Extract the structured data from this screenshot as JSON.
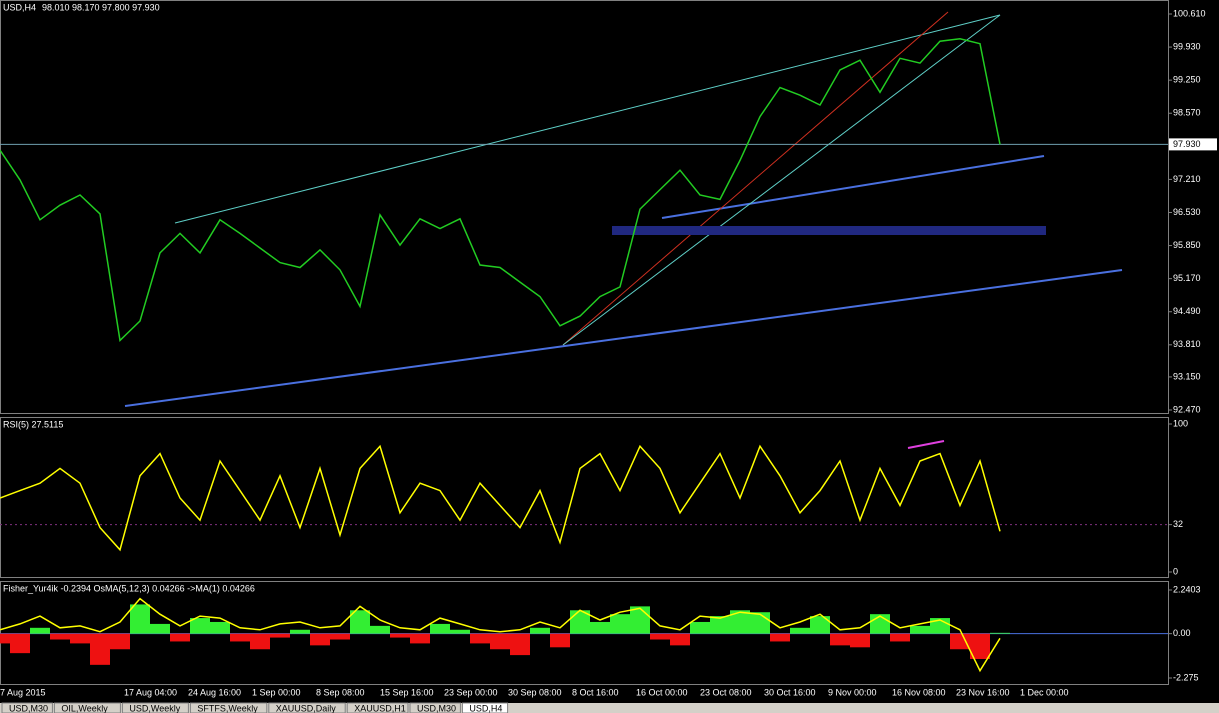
{
  "header": {
    "symbol": "USD,H4",
    "quote": "98.010 98.170 97.800 97.930"
  },
  "price": {
    "ylim": [
      92.47,
      100.61
    ],
    "yticks": [
      {
        "value": 100.61,
        "label": "100.610"
      },
      {
        "value": 99.93,
        "label": "99.930"
      },
      {
        "value": 99.25,
        "label": "99.250"
      },
      {
        "value": 98.57,
        "label": "98.570"
      },
      {
        "value": 97.21,
        "label": "97.210"
      },
      {
        "value": 96.53,
        "label": "96.530"
      },
      {
        "value": 95.85,
        "label": "95.850"
      },
      {
        "value": 95.17,
        "label": "95.170"
      },
      {
        "value": 94.49,
        "label": "94.490"
      },
      {
        "value": 93.81,
        "label": "93.810"
      },
      {
        "value": 93.15,
        "label": "93.150"
      },
      {
        "value": 92.47,
        "label": "92.470"
      }
    ],
    "current": {
      "value": 97.93,
      "label": "97.930"
    },
    "values": [
      97.81,
      97.2,
      96.38,
      96.68,
      96.89,
      96.5,
      93.9,
      94.3,
      95.7,
      96.1,
      95.7,
      96.38,
      96.1,
      95.8,
      95.5,
      95.4,
      95.76,
      95.35,
      94.6,
      96.48,
      95.86,
      96.4,
      96.2,
      96.4,
      95.45,
      95.4,
      95.1,
      94.8,
      94.2,
      94.4,
      94.8,
      95.0,
      96.6,
      97.0,
      97.4,
      96.89,
      96.8,
      97.6,
      98.5,
      99.1,
      98.94,
      98.74,
      99.46,
      99.66,
      99.0,
      99.7,
      99.6,
      100.05,
      100.1,
      100.0,
      97.93
    ]
  },
  "rsi": {
    "label": "RSI(5) 27.5115",
    "ylim": [
      0,
      100
    ],
    "yticks": [
      100,
      32,
      0
    ],
    "values": [
      50,
      55,
      60,
      70,
      60,
      30,
      15,
      65,
      80,
      50,
      35,
      75,
      55,
      35,
      65,
      30,
      70,
      25,
      70,
      85,
      40,
      60,
      55,
      35,
      60,
      45,
      30,
      55,
      20,
      70,
      80,
      55,
      85,
      70,
      40,
      60,
      80,
      50,
      85,
      65,
      40,
      55,
      75,
      35,
      70,
      45,
      75,
      80,
      45,
      75,
      27.5115
    ]
  },
  "fisher": {
    "label": "Fisher_Yur4ik -0.2394  OsMA(5,12,3) 0.04266  ->MA(1) 0.04266",
    "ylim": [
      -2.275,
      2.2403
    ],
    "yticks": [
      2.2403,
      {
        "value": 0,
        "label": "0.00"
      },
      -2.275
    ],
    "osma": [
      -0.5,
      -1.0,
      0.3,
      -0.3,
      -0.5,
      -1.6,
      -0.8,
      1.5,
      0.5,
      -0.4,
      0.8,
      0.6,
      -0.4,
      -0.8,
      -0.2,
      0.2,
      -0.6,
      -0.3,
      1.2,
      0.4,
      -0.2,
      -0.5,
      0.5,
      0.2,
      -0.5,
      -0.8,
      -1.1,
      0.3,
      -0.7,
      1.2,
      0.6,
      1.0,
      1.4,
      -0.3,
      -0.6,
      0.6,
      0.9,
      1.2,
      1.1,
      -0.4,
      0.3,
      0.9,
      -0.6,
      -0.7,
      1.0,
      -0.4,
      0.4,
      0.8,
      -0.8,
      -1.3,
      0.04266
    ],
    "line": [
      0.2,
      0.5,
      0.9,
      0.3,
      0.4,
      0.1,
      0.6,
      1.8,
      1.0,
      0.4,
      0.9,
      0.8,
      0.3,
      0.2,
      0.5,
      0.6,
      0.3,
      0.4,
      1.4,
      0.7,
      0.3,
      0.2,
      0.8,
      0.5,
      0.2,
      0.1,
      0.2,
      0.6,
      0.3,
      1.2,
      0.7,
      1.1,
      1.3,
      0.4,
      0.2,
      0.9,
      0.8,
      1.1,
      1.0,
      0.3,
      0.6,
      1.0,
      0.2,
      0.3,
      0.9,
      0.3,
      0.5,
      0.7,
      0.2,
      -1.9,
      -0.2394
    ]
  },
  "dates": [
    "7 Aug 2015",
    "17 Aug 04:00",
    "24 Aug 16:00",
    "1 Sep 00:00",
    "8 Sep 08:00",
    "15 Sep 16:00",
    "23 Sep 00:00",
    "30 Sep 08:00",
    "8 Oct 16:00",
    "16 Oct 00:00",
    "23 Oct 08:00",
    "30 Oct 16:00",
    "9 Nov 00:00",
    "16 Nov 08:00",
    "23 Nov 16:00",
    "1 Dec 00:00"
  ],
  "tabs": [
    "USD,M30",
    "OIL,Weekly",
    "USD,Weekly",
    "SFTFS,Weekly",
    "XAUUSD,Daily",
    "XAUUSD,H1",
    "USD,M30",
    "USD,H4"
  ]
}
